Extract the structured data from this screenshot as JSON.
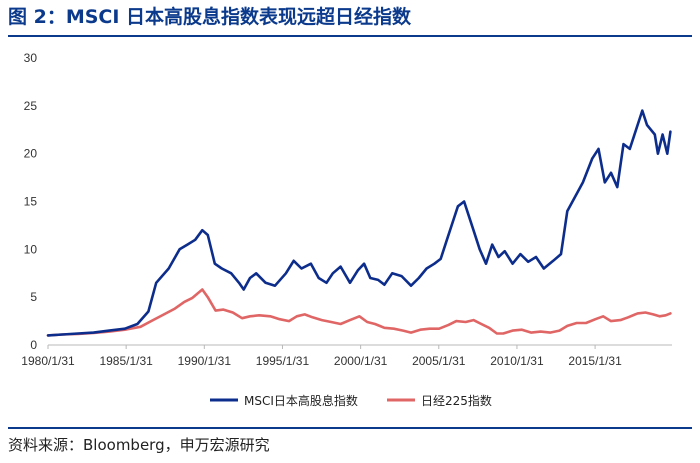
{
  "figure": {
    "title": "图 2：MSCI 日本高股息指数表现远超日经指数",
    "source": "资料来源：Bloomberg，申万宏源研究"
  },
  "colors": {
    "msci": "#0d2d8c",
    "nikkei": "#e06666",
    "accent": "#0b3a8c"
  },
  "chart_data": {
    "type": "line",
    "title": "",
    "xlabel": "",
    "ylabel": "",
    "xlim": [
      1980.08,
      2020.0
    ],
    "ylim": [
      0,
      30
    ],
    "grid": false,
    "legend_position": "bottom",
    "y_ticks": [
      0,
      5,
      10,
      15,
      20,
      25,
      30
    ],
    "y_tick_labels": [
      "0",
      "5",
      "10",
      "15",
      "20",
      "25",
      "30"
    ],
    "x_tick_labels": [
      "1980/1/31",
      "1985/1/31",
      "1990/1/31",
      "1995/1/31",
      "2000/1/31",
      "2005/1/31",
      "2010/1/31",
      "2015/1/31"
    ],
    "x_tick_values": [
      1980.08,
      1985.08,
      1990.08,
      1995.08,
      2000.08,
      2005.08,
      2010.08,
      2015.08
    ],
    "series": [
      {
        "name": "MSCI日本高股息指数",
        "x": [
          1980.08,
          1981.0,
          1982.0,
          1983.0,
          1984.0,
          1985.0,
          1985.8,
          1986.5,
          1987.0,
          1987.8,
          1988.5,
          1989.0,
          1989.5,
          1989.95,
          1990.3,
          1990.75,
          1991.2,
          1991.8,
          1992.3,
          1992.6,
          1993.0,
          1993.4,
          1994.0,
          1994.6,
          1995.3,
          1995.8,
          1996.3,
          1996.9,
          1997.4,
          1997.9,
          1998.3,
          1998.8,
          1999.4,
          1999.9,
          2000.3,
          2000.7,
          2001.2,
          2001.6,
          2002.1,
          2002.7,
          2003.3,
          2003.8,
          2004.3,
          2004.8,
          2005.2,
          2005.6,
          2006.0,
          2006.3,
          2006.7,
          2007.0,
          2007.3,
          2007.7,
          2008.1,
          2008.5,
          2008.9,
          2009.3,
          2009.8,
          2010.3,
          2010.8,
          2011.3,
          2011.8,
          2012.4,
          2012.9,
          2013.3,
          2013.8,
          2014.3,
          2014.9,
          2015.3,
          2015.7,
          2016.1,
          2016.5,
          2016.9,
          2017.3,
          2017.8,
          2018.1,
          2018.4,
          2018.9,
          2019.1,
          2019.4,
          2019.7,
          2019.9
        ],
        "values": [
          1.0,
          1.1,
          1.2,
          1.3,
          1.5,
          1.7,
          2.2,
          3.5,
          6.5,
          8.0,
          10.0,
          10.5,
          11.0,
          12.0,
          11.5,
          8.5,
          8.0,
          7.5,
          6.5,
          5.8,
          7.0,
          7.5,
          6.5,
          6.2,
          7.5,
          8.8,
          8.0,
          8.5,
          7.0,
          6.5,
          7.5,
          8.2,
          6.5,
          7.8,
          8.5,
          7.0,
          6.8,
          6.3,
          7.5,
          7.2,
          6.2,
          7.0,
          8.0,
          8.5,
          9.0,
          11.0,
          13.0,
          14.5,
          15.0,
          13.5,
          12.0,
          10.0,
          8.5,
          10.5,
          9.2,
          9.8,
          8.5,
          9.5,
          8.7,
          9.2,
          8.0,
          8.8,
          9.5,
          14.0,
          15.5,
          17.0,
          19.5,
          20.5,
          17.0,
          18.0,
          16.5,
          21.0,
          20.5,
          23.0,
          24.5,
          23.0,
          22.0,
          20.0,
          22.0,
          20.0,
          22.3
        ]
      },
      {
        "name": "日经225指数",
        "x": [
          1980.08,
          1981.0,
          1982.0,
          1983.0,
          1984.0,
          1985.0,
          1986.0,
          1986.8,
          1987.5,
          1988.2,
          1988.8,
          1989.3,
          1989.95,
          1990.3,
          1990.8,
          1991.3,
          1991.9,
          1992.5,
          1993.0,
          1993.6,
          1994.3,
          1994.9,
          1995.5,
          1996.0,
          1996.5,
          1997.0,
          1997.6,
          1998.2,
          1998.8,
          1999.4,
          2000.0,
          2000.5,
          2001.0,
          2001.6,
          2002.2,
          2002.8,
          2003.3,
          2003.9,
          2004.5,
          2005.1,
          2005.7,
          2006.2,
          2006.8,
          2007.3,
          2007.8,
          2008.3,
          2008.8,
          2009.2,
          2009.8,
          2010.4,
          2011.0,
          2011.6,
          2012.2,
          2012.8,
          2013.3,
          2013.9,
          2014.5,
          2015.1,
          2015.6,
          2016.1,
          2016.7,
          2017.2,
          2017.8,
          2018.3,
          2018.8,
          2019.2,
          2019.6,
          2019.9
        ],
        "values": [
          1.0,
          1.1,
          1.15,
          1.25,
          1.4,
          1.6,
          1.9,
          2.6,
          3.2,
          3.8,
          4.5,
          4.9,
          5.8,
          5.0,
          3.6,
          3.7,
          3.4,
          2.8,
          3.0,
          3.1,
          3.0,
          2.7,
          2.5,
          3.0,
          3.2,
          2.9,
          2.6,
          2.4,
          2.2,
          2.6,
          3.0,
          2.4,
          2.2,
          1.8,
          1.7,
          1.5,
          1.3,
          1.6,
          1.7,
          1.7,
          2.1,
          2.5,
          2.4,
          2.6,
          2.2,
          1.8,
          1.2,
          1.2,
          1.5,
          1.6,
          1.3,
          1.4,
          1.3,
          1.5,
          2.0,
          2.3,
          2.3,
          2.7,
          3.0,
          2.5,
          2.6,
          2.9,
          3.3,
          3.4,
          3.2,
          3.0,
          3.1,
          3.3
        ]
      }
    ]
  }
}
